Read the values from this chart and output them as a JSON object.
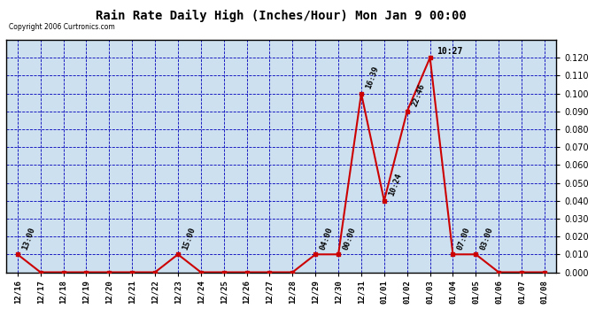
{
  "title": "Rain Rate Daily High (Inches/Hour) Mon Jan 9 00:00",
  "copyright": "Copyright 2006 Curtronics.com",
  "x_labels": [
    "12/16",
    "12/17",
    "12/18",
    "12/19",
    "12/20",
    "12/21",
    "12/22",
    "12/23",
    "12/24",
    "12/25",
    "12/26",
    "12/27",
    "12/28",
    "12/29",
    "12/30",
    "12/31",
    "01/01",
    "01/02",
    "01/03",
    "01/04",
    "01/05",
    "01/06",
    "01/07",
    "01/08"
  ],
  "x_values": [
    0,
    1,
    2,
    3,
    4,
    5,
    6,
    7,
    8,
    9,
    10,
    11,
    12,
    13,
    14,
    15,
    16,
    17,
    18,
    19,
    20,
    21,
    22,
    23
  ],
  "y_values": [
    0.01,
    0.0,
    0.0,
    0.0,
    0.0,
    0.0,
    0.0,
    0.01,
    0.0,
    0.0,
    0.0,
    0.0,
    0.0,
    0.01,
    0.01,
    0.1,
    0.04,
    0.09,
    0.12,
    0.01,
    0.01,
    0.0,
    0.0,
    0.0
  ],
  "point_labels": [
    {
      "xi": 0,
      "yi": 0.01,
      "label": "13:00",
      "rotation": 70
    },
    {
      "xi": 7,
      "yi": 0.01,
      "label": "15:00",
      "rotation": 70
    },
    {
      "xi": 13,
      "yi": 0.01,
      "label": "04:00",
      "rotation": 70
    },
    {
      "xi": 14,
      "yi": 0.01,
      "label": "00:00",
      "rotation": 70
    },
    {
      "xi": 15,
      "yi": 0.1,
      "label": "16:39",
      "rotation": 70
    },
    {
      "xi": 16,
      "yi": 0.04,
      "label": "10:24",
      "rotation": 70
    },
    {
      "xi": 17,
      "yi": 0.09,
      "label": "22:46",
      "rotation": 70
    },
    {
      "xi": 18,
      "yi": 0.12,
      "label": "10:27",
      "rotation": 0
    },
    {
      "xi": 19,
      "yi": 0.01,
      "label": "07:00",
      "rotation": 70
    },
    {
      "xi": 20,
      "yi": 0.01,
      "label": "03:00",
      "rotation": 70
    }
  ],
  "ylim": [
    0.0,
    0.13
  ],
  "yticks": [
    0.0,
    0.01,
    0.02,
    0.03,
    0.04,
    0.05,
    0.06,
    0.07,
    0.08,
    0.09,
    0.1,
    0.11,
    0.12
  ],
  "line_color": "#cc0000",
  "marker_color": "#cc0000",
  "bg_color": "#ffffff",
  "plot_bg_color": "#cce0f0",
  "grid_color": "#0000bb",
  "title_color": "#000000",
  "border_color": "#000000",
  "label_fontsize": 6.5,
  "title_fontsize": 10,
  "tick_fontsize": 7,
  "xtick_fontsize": 6.5
}
